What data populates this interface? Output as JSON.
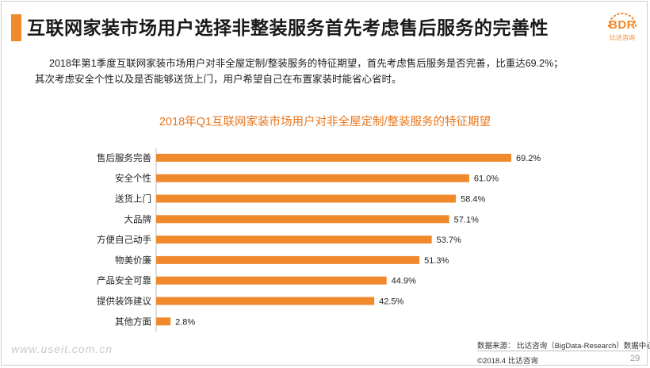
{
  "header": {
    "title": "互联网家装市场用户选择非整装服务首先考虑售后服务的完善性",
    "logo_text": "BDR",
    "logo_sub": "比达咨询"
  },
  "summary": {
    "line1": "2018年第1季度互联网家装市场用户对非全屋定制/整装服务的特征期望，首先考虑售后服务是否完善，比重达69.2%；",
    "line2": "其次考虑安全个性以及是否能够送货上门，用户希望自己在布置家装时能省心省时。"
  },
  "chart_data": {
    "type": "bar",
    "orientation": "horizontal",
    "title": "2018年Q1互联网家装市场用户对非全屋定制/整装服务的特征期望",
    "categories": [
      "售后服务完善",
      "安全个性",
      "送货上门",
      "大品牌",
      "方便自己动手",
      "物美价廉",
      "产品安全可靠",
      "提供装饰建议",
      "其他方面"
    ],
    "values": [
      69.2,
      61.0,
      58.4,
      57.1,
      53.7,
      51.3,
      44.9,
      42.5,
      2.8
    ],
    "value_labels": [
      "69.2%",
      "61.0%",
      "58.4%",
      "57.1%",
      "53.7%",
      "51.3%",
      "44.9%",
      "42.5%",
      "2.8%"
    ],
    "xlim": [
      0,
      100
    ],
    "color": "#f0892b",
    "grid": false,
    "legend": "none"
  },
  "footer": {
    "source": "数据来源：  比达咨询（BigData-Research）数据中心",
    "copyright": "©2018.4   比达咨询",
    "page": "29",
    "watermark": "www.useit.com.cn"
  }
}
